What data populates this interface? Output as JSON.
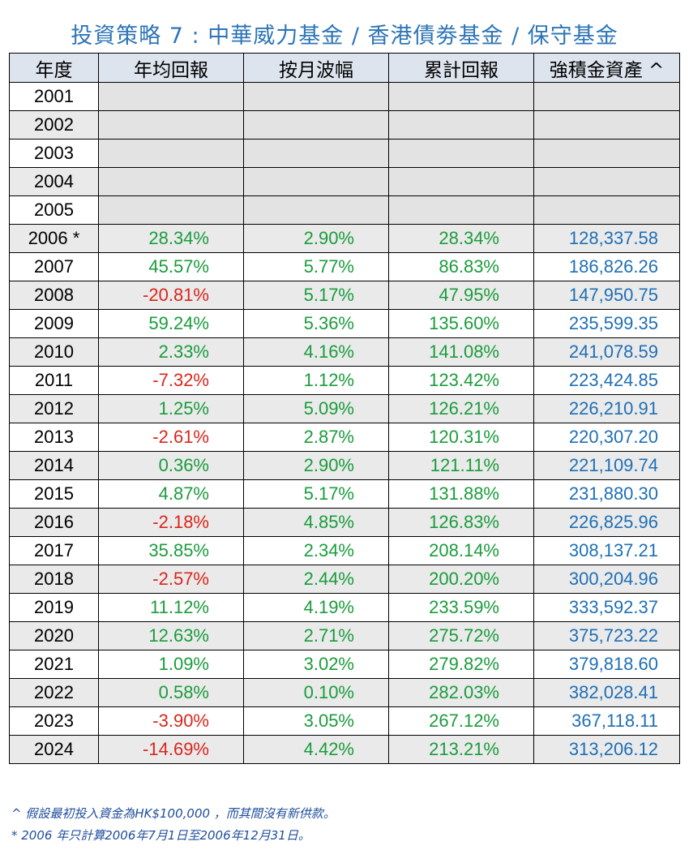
{
  "title": "投資策略 7 : 中華威力基金 / 香港債劵基金  /  保守基金",
  "colors": {
    "title": "#2e75b6",
    "positive": "#1a9c3c",
    "negative": "#d9261c",
    "asset": "#1f6fb5"
  },
  "headers": [
    "年度",
    "年均回報",
    "按月波幅",
    "累計回報",
    "強積金資產 ^"
  ],
  "rows": [
    {
      "year": "2001",
      "annual": "",
      "vol": "",
      "cum": "",
      "asset": ""
    },
    {
      "year": "2002",
      "annual": "",
      "vol": "",
      "cum": "",
      "asset": ""
    },
    {
      "year": "2003",
      "annual": "",
      "vol": "",
      "cum": "",
      "asset": ""
    },
    {
      "year": "2004",
      "annual": "",
      "vol": "",
      "cum": "",
      "asset": ""
    },
    {
      "year": "2005",
      "annual": "",
      "vol": "",
      "cum": "",
      "asset": ""
    },
    {
      "year": "2006 *",
      "annual": "28.34%",
      "vol": "2.90%",
      "cum": "28.34%",
      "asset": "128,337.58"
    },
    {
      "year": "2007",
      "annual": "45.57%",
      "vol": "5.77%",
      "cum": "86.83%",
      "asset": "186,826.26"
    },
    {
      "year": "2008",
      "annual": "-20.81%",
      "vol": "5.17%",
      "cum": "47.95%",
      "asset": "147,950.75"
    },
    {
      "year": "2009",
      "annual": "59.24%",
      "vol": "5.36%",
      "cum": "135.60%",
      "asset": "235,599.35"
    },
    {
      "year": "2010",
      "annual": "2.33%",
      "vol": "4.16%",
      "cum": "141.08%",
      "asset": "241,078.59"
    },
    {
      "year": "2011",
      "annual": "-7.32%",
      "vol": "1.12%",
      "cum": "123.42%",
      "asset": "223,424.85"
    },
    {
      "year": "2012",
      "annual": "1.25%",
      "vol": "5.09%",
      "cum": "126.21%",
      "asset": "226,210.91"
    },
    {
      "year": "2013",
      "annual": "-2.61%",
      "vol": "2.87%",
      "cum": "120.31%",
      "asset": "220,307.20"
    },
    {
      "year": "2014",
      "annual": "0.36%",
      "vol": "2.90%",
      "cum": "121.11%",
      "asset": "221,109.74"
    },
    {
      "year": "2015",
      "annual": "4.87%",
      "vol": "5.17%",
      "cum": "131.88%",
      "asset": "231,880.30"
    },
    {
      "year": "2016",
      "annual": "-2.18%",
      "vol": "4.85%",
      "cum": "126.83%",
      "asset": "226,825.96"
    },
    {
      "year": "2017",
      "annual": "35.85%",
      "vol": "2.34%",
      "cum": "208.14%",
      "asset": "308,137.21"
    },
    {
      "year": "2018",
      "annual": "-2.57%",
      "vol": "2.44%",
      "cum": "200.20%",
      "asset": "300,204.96"
    },
    {
      "year": "2019",
      "annual": "11.12%",
      "vol": "4.19%",
      "cum": "233.59%",
      "asset": "333,592.37"
    },
    {
      "year": "2020",
      "annual": "12.63%",
      "vol": "2.71%",
      "cum": "275.72%",
      "asset": "375,723.22"
    },
    {
      "year": "2021",
      "annual": "1.09%",
      "vol": "3.02%",
      "cum": "279.82%",
      "asset": "379,818.60"
    },
    {
      "year": "2022",
      "annual": "0.58%",
      "vol": "0.10%",
      "cum": "282.03%",
      "asset": "382,028.41"
    },
    {
      "year": "2023",
      "annual": "-3.90%",
      "vol": "3.05%",
      "cum": "267.12%",
      "asset": "367,118.11"
    },
    {
      "year": "2024",
      "annual": "-14.69%",
      "vol": "4.42%",
      "cum": "213.21%",
      "asset": "313,206.12"
    }
  ],
  "notes": [
    "^ 假設最初投入資金為HK$100,000  ，而其間沒有新供款。",
    "* 2006 年只計算2006年7月1日至2006年12月31日。"
  ]
}
